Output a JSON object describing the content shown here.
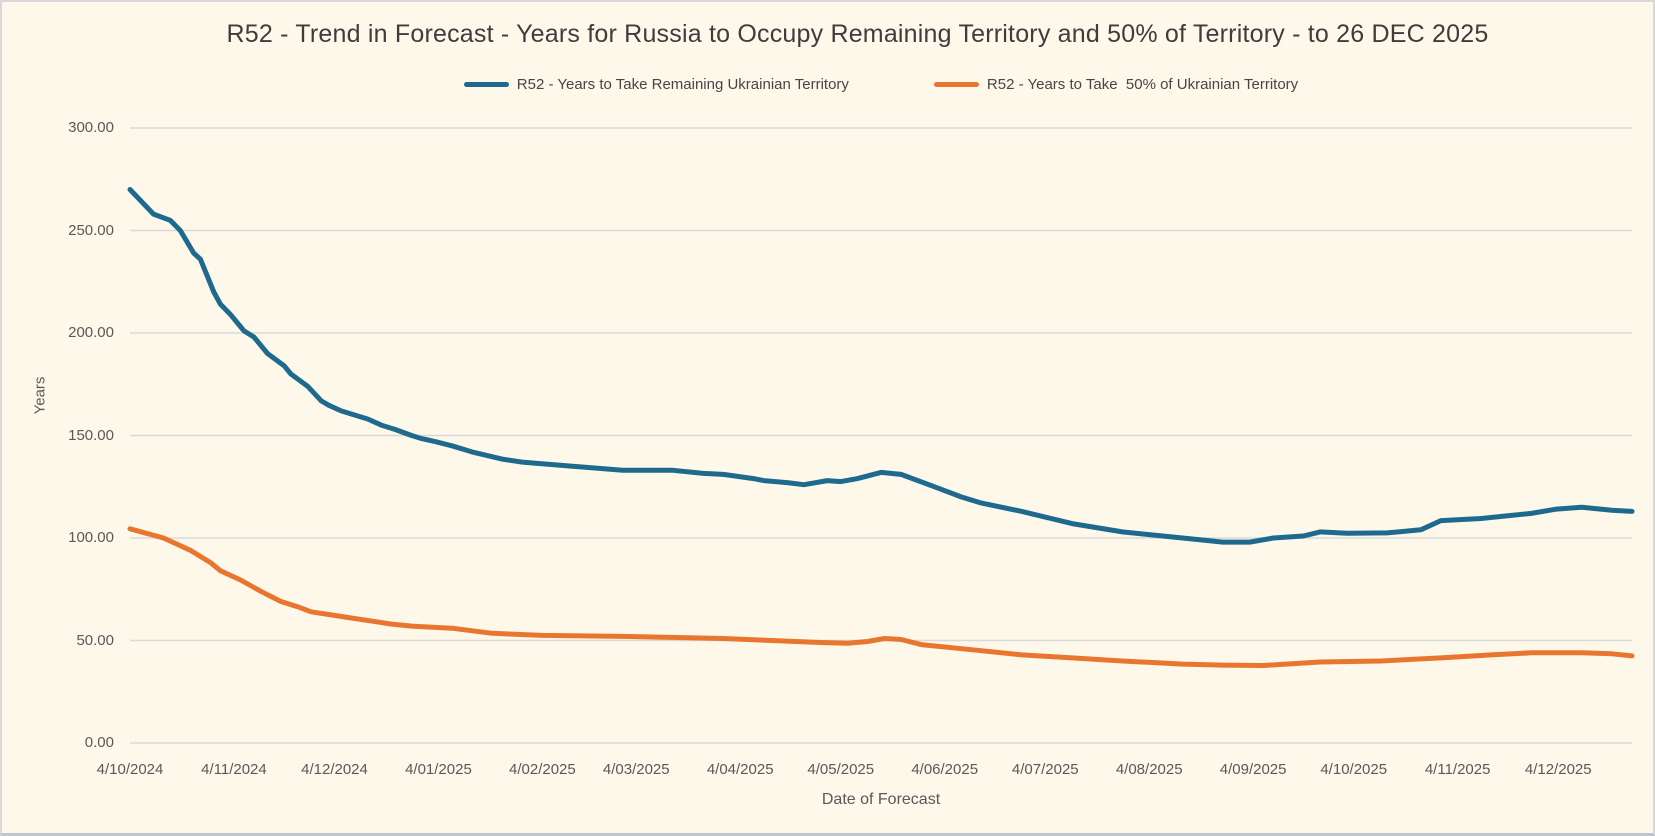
{
  "title": "R52 - Trend in Forecast - Years for Russia to Occupy Remaining Territory and 50% of Territory - to 26 DEC 2025",
  "legend": {
    "items": [
      {
        "label": "R52 - Years to Take Remaining Ukrainian Territory",
        "color": "#1e6a8e"
      },
      {
        "label": "R52 - Years to Take  50% of Ukrainian Territory",
        "color": "#e9762f"
      }
    ]
  },
  "colors": {
    "background": "#fdf8ea",
    "gridline": "#d9d9d9",
    "axis_text": "#595959",
    "title_text": "#3d3d3d",
    "series_remaining": "#1e6a8e",
    "series_half": "#e9762f"
  },
  "chart_data": {
    "type": "line",
    "title": "R52 - Trend in Forecast - Years for Russia to Occupy Remaining Territory and 50% of Territory - to 26 DEC 2025",
    "xlabel": "Date of Forecast",
    "ylabel": "Years",
    "ylim": [
      0,
      300
    ],
    "y_tick_step": 50,
    "y_tick_labels": [
      "0.00",
      "50.00",
      "100.00",
      "150.00",
      "200.00",
      "250.00",
      "300.00"
    ],
    "grid": true,
    "legend_position": "top",
    "x_axis_note": "x expressed as days since first forecast 4/10/2024; axis ends 26 DEC 2025",
    "x_range_days": [
      0,
      448
    ],
    "x_ticks": [
      {
        "label": "4/10/2024",
        "day": 0
      },
      {
        "label": "4/11/2024",
        "day": 31
      },
      {
        "label": "4/12/2024",
        "day": 61
      },
      {
        "label": "4/01/2025",
        "day": 92
      },
      {
        "label": "4/02/2025",
        "day": 123
      },
      {
        "label": "4/03/2025",
        "day": 151
      },
      {
        "label": "4/04/2025",
        "day": 182
      },
      {
        "label": "4/05/2025",
        "day": 212
      },
      {
        "label": "4/06/2025",
        "day": 243
      },
      {
        "label": "4/07/2025",
        "day": 273
      },
      {
        "label": "4/08/2025",
        "day": 304
      },
      {
        "label": "4/09/2025",
        "day": 335
      },
      {
        "label": "4/10/2025",
        "day": 365
      },
      {
        "label": "4/11/2025",
        "day": 396
      },
      {
        "label": "4/12/2025",
        "day": 426
      }
    ],
    "series": [
      {
        "name": "R52 - Years to Take Remaining Ukrainian Territory",
        "color": "#1e6a8e",
        "points": [
          [
            0,
            270
          ],
          [
            7,
            258
          ],
          [
            12,
            255
          ],
          [
            15,
            250
          ],
          [
            19,
            239
          ],
          [
            21,
            236
          ],
          [
            25,
            220
          ],
          [
            27,
            214
          ],
          [
            30,
            209
          ],
          [
            34,
            201
          ],
          [
            37,
            198
          ],
          [
            41,
            190
          ],
          [
            46,
            184
          ],
          [
            48,
            180
          ],
          [
            53,
            174
          ],
          [
            57,
            167
          ],
          [
            59,
            165
          ],
          [
            63,
            162
          ],
          [
            67,
            160
          ],
          [
            71,
            158
          ],
          [
            75,
            155
          ],
          [
            79,
            153
          ],
          [
            84,
            150
          ],
          [
            87,
            148.5
          ],
          [
            91,
            147
          ],
          [
            96,
            145
          ],
          [
            102,
            142
          ],
          [
            111,
            138.5
          ],
          [
            117,
            137
          ],
          [
            121,
            136.5
          ],
          [
            132,
            135
          ],
          [
            147,
            133
          ],
          [
            162,
            133
          ],
          [
            171,
            131.5
          ],
          [
            177,
            131
          ],
          [
            186,
            129
          ],
          [
            189,
            128
          ],
          [
            196,
            127
          ],
          [
            201,
            126
          ],
          [
            208,
            128
          ],
          [
            212,
            127.5
          ],
          [
            217,
            129
          ],
          [
            224,
            132
          ],
          [
            230,
            131
          ],
          [
            240,
            125
          ],
          [
            248,
            120
          ],
          [
            254,
            117
          ],
          [
            266,
            113
          ],
          [
            281,
            107
          ],
          [
            296,
            103
          ],
          [
            311,
            100.5
          ],
          [
            326,
            98
          ],
          [
            334,
            98
          ],
          [
            341,
            100
          ],
          [
            350,
            101
          ],
          [
            355,
            103
          ],
          [
            363,
            102.3
          ],
          [
            375,
            102.5
          ],
          [
            385,
            104
          ],
          [
            391,
            108.5
          ],
          [
            403,
            109.5
          ],
          [
            418,
            112
          ],
          [
            425,
            114
          ],
          [
            433,
            115
          ],
          [
            442,
            113.5
          ],
          [
            448,
            113
          ]
        ]
      },
      {
        "name": "R52 - Years to Take  50% of Ukrainian Territory",
        "color": "#e9762f",
        "points": [
          [
            0,
            104.5
          ],
          [
            10,
            100
          ],
          [
            14,
            97
          ],
          [
            18,
            94
          ],
          [
            24,
            88
          ],
          [
            27,
            84
          ],
          [
            33,
            79.5
          ],
          [
            39,
            74
          ],
          [
            45,
            69
          ],
          [
            50,
            66.5
          ],
          [
            54,
            64
          ],
          [
            60,
            62.5
          ],
          [
            66,
            61
          ],
          [
            78,
            58
          ],
          [
            84,
            57
          ],
          [
            96,
            56
          ],
          [
            108,
            53.5
          ],
          [
            123,
            52.5
          ],
          [
            147,
            52
          ],
          [
            177,
            51
          ],
          [
            206,
            49
          ],
          [
            214,
            48.7
          ],
          [
            220,
            49.5
          ],
          [
            225,
            51
          ],
          [
            230,
            50.5
          ],
          [
            236,
            48
          ],
          [
            251,
            45.5
          ],
          [
            266,
            43
          ],
          [
            281,
            41.5
          ],
          [
            296,
            40
          ],
          [
            314,
            38.5
          ],
          [
            326,
            38
          ],
          [
            338,
            37.8
          ],
          [
            355,
            39.5
          ],
          [
            373,
            40
          ],
          [
            391,
            41.5
          ],
          [
            406,
            43
          ],
          [
            418,
            44
          ],
          [
            433,
            44
          ],
          [
            442,
            43.5
          ],
          [
            448,
            42.5
          ]
        ]
      }
    ]
  }
}
